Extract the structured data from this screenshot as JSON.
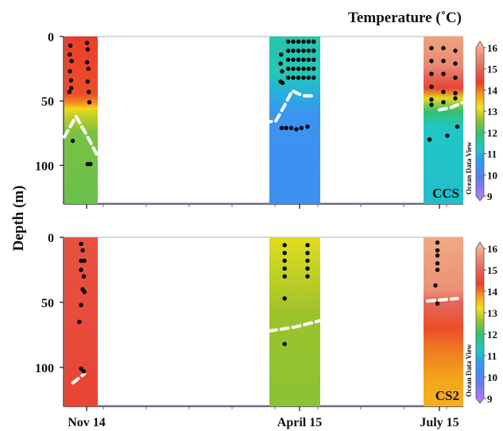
{
  "chart_data": {
    "type": "heatmap",
    "title": "Temperature (˚C)",
    "ylabel": "Depth (m)",
    "xlabel": "",
    "x_ticks": [
      "Nov 14",
      "April 15",
      "July 15"
    ],
    "ylim": [
      130,
      0
    ],
    "y_ticks": [
      0,
      50,
      100
    ],
    "colorbar": {
      "label": "Temperature (˚C)",
      "range": [
        9,
        16
      ],
      "ticks": [
        "9",
        "10",
        "11",
        "12",
        "13",
        "14",
        "15",
        "16"
      ],
      "watermark": "Ocean Data View",
      "stops": [
        {
          "v": 9,
          "color": "#c27cf0"
        },
        {
          "v": 10,
          "color": "#5a7df2"
        },
        {
          "v": 10.8,
          "color": "#2f9cf0"
        },
        {
          "v": 11.3,
          "color": "#20c7c4"
        },
        {
          "v": 12,
          "color": "#35c06f"
        },
        {
          "v": 12.6,
          "color": "#9cc22a"
        },
        {
          "v": 13.1,
          "color": "#f2e21e"
        },
        {
          "v": 13.6,
          "color": "#f4a51c"
        },
        {
          "v": 14.2,
          "color": "#ea3d2c"
        },
        {
          "v": 15,
          "color": "#e2746a"
        },
        {
          "v": 16,
          "color": "#f8c08e"
        }
      ]
    },
    "panels": [
      {
        "name": "CCS",
        "surveys": [
          {
            "time": "Nov 14",
            "temperature_profile": [
              [
                0,
                14.2
              ],
              [
                45,
                14.1
              ],
              [
                52,
                13.7
              ],
              [
                56,
                13.2
              ],
              [
                62,
                12.8
              ],
              [
                75,
                12.4
              ],
              [
                130,
                12.3
              ]
            ],
            "mixed_layer_depth": [
              [
                0,
                78
              ],
              [
                0.35,
                62
              ],
              [
                0.7,
                78
              ],
              [
                1,
                93
              ]
            ],
            "samples": [
              {
                "f": 0.18,
                "d": 7
              },
              {
                "f": 0.16,
                "d": 14
              },
              {
                "f": 0.22,
                "d": 19
              },
              {
                "f": 0.17,
                "d": 27
              },
              {
                "f": 0.2,
                "d": 34
              },
              {
                "f": 0.15,
                "d": 43
              },
              {
                "f": 0.21,
                "d": 40
              },
              {
                "f": 0.25,
                "d": 81
              },
              {
                "f": 0.68,
                "d": 5
              },
              {
                "f": 0.7,
                "d": 10
              },
              {
                "f": 0.68,
                "d": 20
              },
              {
                "f": 0.72,
                "d": 25
              },
              {
                "f": 0.7,
                "d": 35
              },
              {
                "f": 0.73,
                "d": 43
              },
              {
                "f": 0.75,
                "d": 51
              },
              {
                "f": 0.7,
                "d": 99
              },
              {
                "f": 0.78,
                "d": 99
              }
            ]
          },
          {
            "time": "April 15",
            "temperature_profile": [
              [
                0,
                11.5
              ],
              [
                30,
                11.4
              ],
              [
                45,
                11.0
              ],
              [
                60,
                10.6
              ],
              [
                130,
                10.5
              ]
            ],
            "mixed_layer_depth": [
              [
                -0.1,
                66
              ],
              [
                0.12,
                66
              ],
              [
                0.28,
                55
              ],
              [
                0.45,
                42
              ],
              [
                0.65,
                46
              ],
              [
                0.9,
                46
              ]
            ],
            "samples": [
              {
                "f": 0.23,
                "d": 14
              },
              {
                "f": 0.22,
                "d": 21
              },
              {
                "f": 0.25,
                "d": 27
              },
              {
                "f": 0.22,
                "d": 35
              },
              {
                "f": 0.26,
                "d": 36
              },
              {
                "f": 0.24,
                "d": 71
              },
              {
                "f": 0.33,
                "d": 71
              },
              {
                "f": 0.43,
                "d": 71
              },
              {
                "f": 0.53,
                "d": 72
              },
              {
                "f": 0.63,
                "d": 71
              },
              {
                "f": 0.75,
                "d": 70
              },
              {
                "f": 0.37,
                "d": 4
              },
              {
                "f": 0.47,
                "d": 4
              },
              {
                "f": 0.57,
                "d": 4
              },
              {
                "f": 0.67,
                "d": 4
              },
              {
                "f": 0.77,
                "d": 4
              },
              {
                "f": 0.87,
                "d": 4
              },
              {
                "f": 0.37,
                "d": 11
              },
              {
                "f": 0.47,
                "d": 11
              },
              {
                "f": 0.57,
                "d": 11
              },
              {
                "f": 0.67,
                "d": 11
              },
              {
                "f": 0.77,
                "d": 11
              },
              {
                "f": 0.87,
                "d": 11
              },
              {
                "f": 0.37,
                "d": 18
              },
              {
                "f": 0.47,
                "d": 18
              },
              {
                "f": 0.57,
                "d": 18
              },
              {
                "f": 0.67,
                "d": 18
              },
              {
                "f": 0.77,
                "d": 18
              },
              {
                "f": 0.87,
                "d": 18
              },
              {
                "f": 0.37,
                "d": 25
              },
              {
                "f": 0.47,
                "d": 25
              },
              {
                "f": 0.57,
                "d": 25
              },
              {
                "f": 0.67,
                "d": 25
              },
              {
                "f": 0.77,
                "d": 25
              },
              {
                "f": 0.87,
                "d": 25
              },
              {
                "f": 0.37,
                "d": 32
              },
              {
                "f": 0.47,
                "d": 32
              },
              {
                "f": 0.57,
                "d": 32
              },
              {
                "f": 0.67,
                "d": 32
              },
              {
                "f": 0.77,
                "d": 32
              },
              {
                "f": 0.87,
                "d": 32
              }
            ]
          },
          {
            "time": "July 15",
            "temperature_profile": [
              [
                0,
                15.6
              ],
              [
                22,
                15.3
              ],
              [
                33,
                14.7
              ],
              [
                40,
                14.3
              ],
              [
                48,
                13.0
              ],
              [
                58,
                12.0
              ],
              [
                70,
                11.3
              ],
              [
                130,
                11.2
              ]
            ],
            "mixed_layer_depth": [
              [
                0.4,
                57
              ],
              [
                0.7,
                55
              ],
              [
                1,
                51
              ]
            ],
            "samples": [
              {
                "f": 0.2,
                "d": 9
              },
              {
                "f": 0.5,
                "d": 9
              },
              {
                "f": 0.8,
                "d": 11
              },
              {
                "f": 0.2,
                "d": 19
              },
              {
                "f": 0.5,
                "d": 19
              },
              {
                "f": 0.8,
                "d": 21
              },
              {
                "f": 0.2,
                "d": 29
              },
              {
                "f": 0.5,
                "d": 29
              },
              {
                "f": 0.8,
                "d": 32
              },
              {
                "f": 0.2,
                "d": 39
              },
              {
                "f": 0.5,
                "d": 43
              },
              {
                "f": 0.8,
                "d": 44
              },
              {
                "f": 0.2,
                "d": 49
              },
              {
                "f": 0.5,
                "d": 51
              },
              {
                "f": 0.8,
                "d": 48
              },
              {
                "f": 0.2,
                "d": 53
              },
              {
                "f": 0.85,
                "d": 70
              },
              {
                "f": 0.15,
                "d": 80
              },
              {
                "f": 0.6,
                "d": 77
              }
            ]
          }
        ]
      },
      {
        "name": "CS2",
        "surveys": [
          {
            "time": "Nov 14",
            "temperature_profile": [
              [
                0,
                14.5
              ],
              [
                130,
                14.3
              ]
            ],
            "mixed_layer_depth": [
              [
                0.25,
                112
              ],
              [
                0.6,
                105
              ]
            ],
            "samples": [
              {
                "f": 0.5,
                "d": 5
              },
              {
                "f": 0.55,
                "d": 10
              },
              {
                "f": 0.5,
                "d": 18
              },
              {
                "f": 0.6,
                "d": 18
              },
              {
                "f": 0.5,
                "d": 25
              },
              {
                "f": 0.58,
                "d": 30
              },
              {
                "f": 0.55,
                "d": 40
              },
              {
                "f": 0.6,
                "d": 42
              },
              {
                "f": 0.5,
                "d": 52
              },
              {
                "f": 0.45,
                "d": 65
              },
              {
                "f": 0.5,
                "d": 101
              },
              {
                "f": 0.58,
                "d": 103
              }
            ]
          },
          {
            "time": "April 15",
            "temperature_profile": [
              [
                0,
                13.0
              ],
              [
                30,
                12.8
              ],
              [
                60,
                12.6
              ],
              [
                130,
                12.5
              ]
            ],
            "mixed_layer_depth": [
              [
                0.0,
                72
              ],
              [
                0.5,
                69
              ],
              [
                1.0,
                64
              ]
            ],
            "samples": [
              {
                "f": 0.3,
                "d": 6
              },
              {
                "f": 0.3,
                "d": 12
              },
              {
                "f": 0.3,
                "d": 18
              },
              {
                "f": 0.3,
                "d": 24
              },
              {
                "f": 0.3,
                "d": 30
              },
              {
                "f": 0.75,
                "d": 6
              },
              {
                "f": 0.75,
                "d": 12
              },
              {
                "f": 0.75,
                "d": 18
              },
              {
                "f": 0.75,
                "d": 24
              },
              {
                "f": 0.75,
                "d": 30
              },
              {
                "f": 0.3,
                "d": 47
              },
              {
                "f": 0.3,
                "d": 82
              }
            ]
          },
          {
            "time": "July 15",
            "temperature_profile": [
              [
                0,
                15.7
              ],
              [
                40,
                15.4
              ],
              [
                50,
                14.8
              ],
              [
                70,
                14.1
              ],
              [
                90,
                13.8
              ],
              [
                110,
                13.6
              ],
              [
                130,
                13.5
              ]
            ],
            "mixed_layer_depth": [
              [
                0.1,
                49
              ],
              [
                0.5,
                48
              ],
              [
                0.85,
                47
              ]
            ],
            "samples": [
              {
                "f": 0.35,
                "d": 4
              },
              {
                "f": 0.35,
                "d": 10
              },
              {
                "f": 0.35,
                "d": 14
              },
              {
                "f": 0.35,
                "d": 20
              },
              {
                "f": 0.35,
                "d": 25
              },
              {
                "f": 0.3,
                "d": 37
              },
              {
                "f": 0.35,
                "d": 51
              }
            ]
          }
        ]
      }
    ]
  }
}
